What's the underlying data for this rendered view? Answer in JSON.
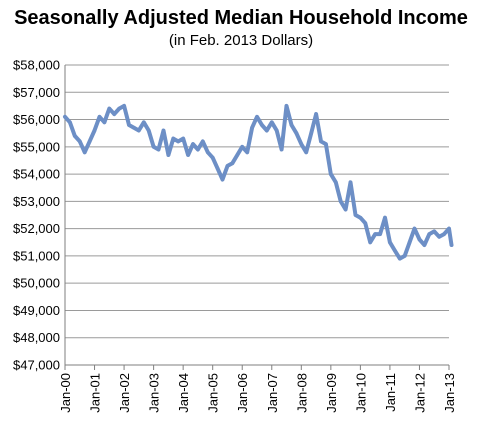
{
  "chart_data": {
    "type": "line",
    "title": "Seasonally Adjusted Median Household Income",
    "subtitle": "(in Feb. 2013 Dollars)",
    "xlabel": "",
    "ylabel": "",
    "ylim": [
      47000,
      58000
    ],
    "y_ticks": [
      "$47,000",
      "$48,000",
      "$49,000",
      "$50,000",
      "$51,000",
      "$52,000",
      "$53,000",
      "$54,000",
      "$55,000",
      "$56,000",
      "$57,000",
      "$58,000"
    ],
    "x_ticks": [
      "Jan-00",
      "Jan-01",
      "Jan-02",
      "Jan-03",
      "Jan-04",
      "Jan-05",
      "Jan-06",
      "Jan-07",
      "Jan-08",
      "Jan-09",
      "Jan-10",
      "Jan-11",
      "Jan-12",
      "Jan-13"
    ],
    "grid": true,
    "legend": "none",
    "series": [
      {
        "color": "#6d8fc6",
        "x": [
          "2000-01",
          "2000-03",
          "2000-05",
          "2000-07",
          "2000-09",
          "2000-11",
          "2001-01",
          "2001-03",
          "2001-05",
          "2001-07",
          "2001-09",
          "2001-11",
          "2002-01",
          "2002-03",
          "2002-05",
          "2002-07",
          "2002-09",
          "2002-11",
          "2003-01",
          "2003-03",
          "2003-05",
          "2003-07",
          "2003-09",
          "2003-11",
          "2004-01",
          "2004-03",
          "2004-05",
          "2004-07",
          "2004-09",
          "2004-11",
          "2005-01",
          "2005-03",
          "2005-05",
          "2005-07",
          "2005-09",
          "2005-11",
          "2006-01",
          "2006-03",
          "2006-05",
          "2006-07",
          "2006-09",
          "2006-11",
          "2007-01",
          "2007-03",
          "2007-05",
          "2007-07",
          "2007-09",
          "2007-11",
          "2008-01",
          "2008-03",
          "2008-05",
          "2008-07",
          "2008-09",
          "2008-11",
          "2009-01",
          "2009-03",
          "2009-05",
          "2009-07",
          "2009-09",
          "2009-11",
          "2010-01",
          "2010-03",
          "2010-05",
          "2010-07",
          "2010-09",
          "2010-11",
          "2011-01",
          "2011-03",
          "2011-05",
          "2011-07",
          "2011-09",
          "2011-11",
          "2012-01",
          "2012-03",
          "2012-05",
          "2012-07",
          "2012-09",
          "2012-11",
          "2013-01",
          "2013-02"
        ],
        "values": [
          56100,
          55900,
          55400,
          55200,
          54800,
          55200,
          55600,
          56100,
          55900,
          56400,
          56200,
          56400,
          56500,
          55800,
          55700,
          55600,
          55900,
          55600,
          55000,
          54900,
          55600,
          54700,
          55300,
          55200,
          55300,
          54700,
          55100,
          54900,
          55200,
          54800,
          54600,
          54200,
          53800,
          54300,
          54400,
          54700,
          55000,
          54800,
          55700,
          56100,
          55800,
          55600,
          55900,
          55600,
          54900,
          56500,
          55800,
          55500,
          55100,
          54800,
          55500,
          56200,
          55200,
          55100,
          54000,
          53700,
          53000,
          52700,
          53700,
          52500,
          52400,
          52200,
          51500,
          51800,
          51800,
          52400,
          51500,
          51200,
          50900,
          51000,
          51500,
          52000,
          51600,
          51400,
          51800,
          51900,
          51700,
          51800,
          52000,
          51400
        ]
      }
    ]
  }
}
